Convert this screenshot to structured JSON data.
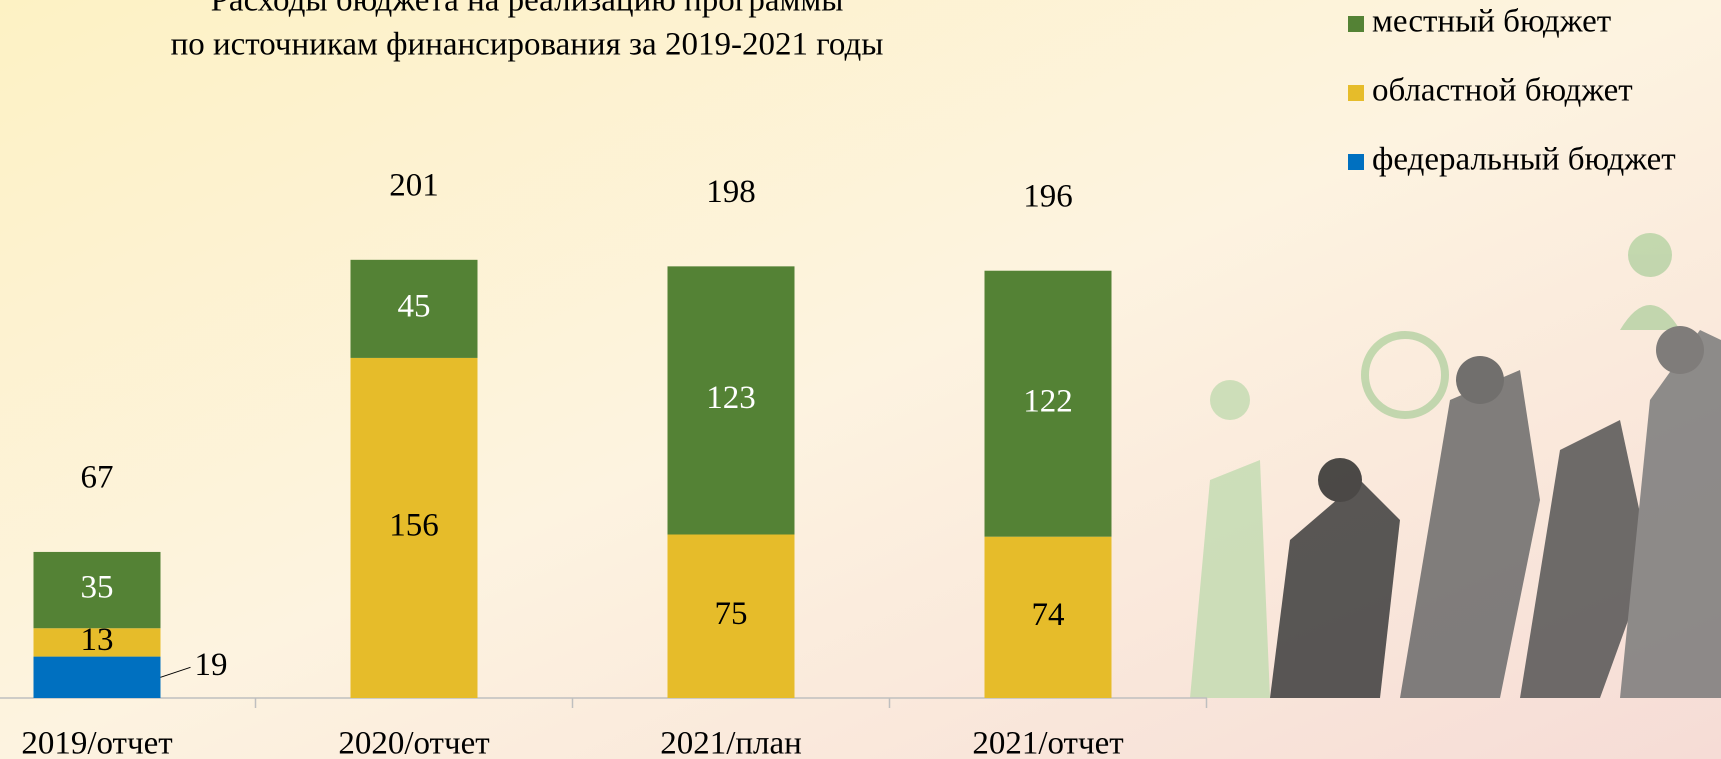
{
  "chart_data": {
    "type": "stacked-bar",
    "title": [
      "Расходы бюджета на реализацию программы",
      "по источникам финансирования за 2019-2021 годы"
    ],
    "categories": [
      "2019/отчет",
      "2020/отчет",
      "2021/план",
      "2021/отчет"
    ],
    "series": [
      {
        "name": "федеральный бюджет",
        "color": "#0070c0",
        "values": [
          19,
          null,
          null,
          null
        ]
      },
      {
        "name": "областной бюджет",
        "color": "#e6bc2a",
        "values": [
          13,
          156,
          75,
          74
        ]
      },
      {
        "name": "местный бюджет",
        "color": "#548235",
        "values": [
          35,
          45,
          123,
          122
        ]
      }
    ],
    "totals": [
      67,
      201,
      198,
      196
    ]
  }
}
